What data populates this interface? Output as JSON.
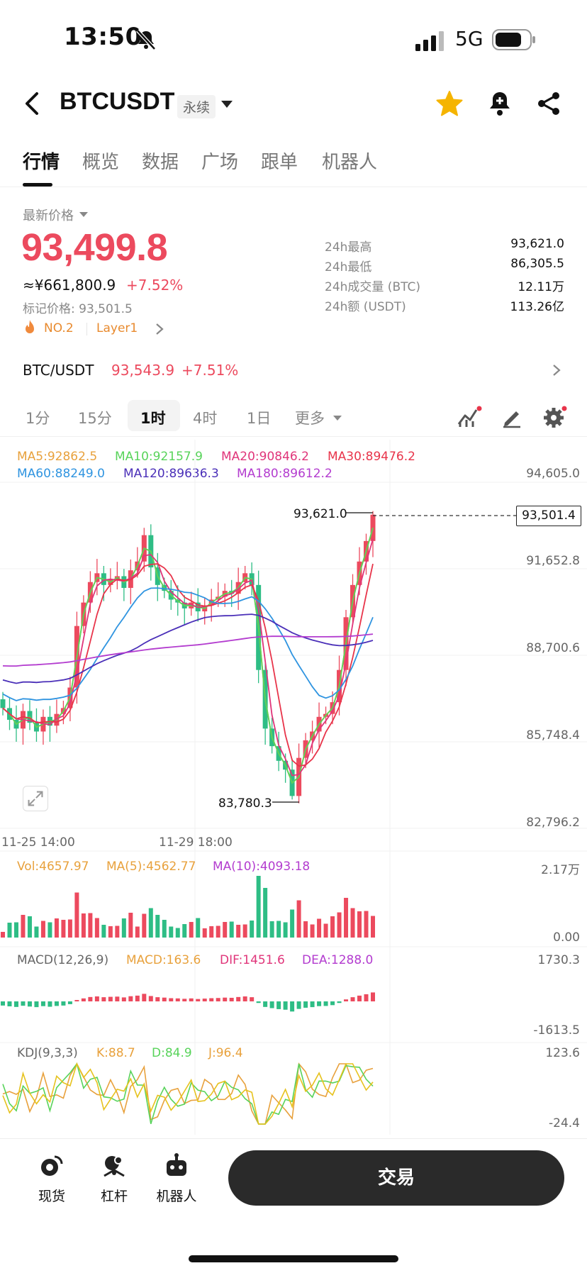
{
  "status_bar": {
    "time": "13:50",
    "network": "5G"
  },
  "header": {
    "symbol": "BTCUSDT",
    "contract_type": "永续"
  },
  "tabs": [
    "行情",
    "概览",
    "数据",
    "广场",
    "跟单",
    "机器人"
  ],
  "price": {
    "latest_label": "最新价格",
    "last": "93,499.8",
    "cny": "≈¥661,800.9",
    "change_pct": "+7.52%",
    "mark": "标记价格: 93,501.5",
    "rank": "NO.2",
    "sector": "Layer1"
  },
  "stats": [
    {
      "label": "24h最高",
      "value": "93,621.0"
    },
    {
      "label": "24h最低",
      "value": "86,305.5"
    },
    {
      "label": "24h成交量 (BTC)",
      "value": "12.11万"
    },
    {
      "label": "24h额 (USDT)",
      "value": "113.26亿"
    }
  ],
  "pair": {
    "name": "BTC/USDT",
    "price": "93,543.9",
    "change": "+7.51%"
  },
  "timeframes": [
    "1分",
    "15分",
    "1时",
    "4时",
    "1日",
    "更多"
  ],
  "active_timeframe": "1时",
  "ma_legend": {
    "ma5": "MA5:92862.5",
    "ma10": "MA10:92157.9",
    "ma20": "MA20:90846.2",
    "ma30": "MA30:89476.2",
    "ma60": "MA60:88249.0",
    "ma120": "MA120:89636.3",
    "ma180": "MA180:89612.2"
  },
  "price_axis": [
    "94,605.0",
    "91,652.8",
    "88,700.6",
    "85,748.4",
    "82,796.2"
  ],
  "price_tag": "93,501.4",
  "high_marker": "93,621.0",
  "low_marker": "83,780.3",
  "time_axis": [
    "11-25 14:00",
    "11-29 18:00"
  ],
  "volume": {
    "vol": "Vol:4657.97",
    "ma5": "MA(5):4562.77",
    "ma10": "MA(10):4093.18",
    "axis_top": "2.17万",
    "axis_bottom": "0.00"
  },
  "macd": {
    "label": "MACD(12,26,9)",
    "macd": "MACD:163.6",
    "dif": "DIF:1451.6",
    "dea": "DEA:1288.0",
    "axis_top": "1730.3",
    "axis_bottom": "-1613.5"
  },
  "kdj": {
    "label": "KDJ(9,3,3)",
    "k": "K:88.7",
    "d": "D:84.9",
    "j": "J:96.4",
    "axis_top": "123.6",
    "axis_bottom": "-24.4"
  },
  "bottom_nav": [
    "现货",
    "杠杆",
    "机器人"
  ],
  "trade_button": "交易",
  "colors": {
    "up": "#ec4a5e",
    "down": "#2ebd85",
    "accent_orange": "#e88a2e",
    "ma5": "#e8a13c",
    "ma10": "#58d35a",
    "ma20": "#e0357a",
    "ma30": "#e8344a",
    "ma60": "#2f94e0",
    "ma120": "#4a2fb8",
    "ma180": "#b33ccf"
  },
  "chart_data": {
    "type": "candlestick",
    "interval": "1h",
    "ylim": [
      82796.2,
      94605.0
    ],
    "high": 93621.0,
    "low": 83780.3,
    "last": 93501.4,
    "close_series": [
      86900,
      86500,
      86200,
      86800,
      86400,
      86100,
      86600,
      86300,
      86700,
      86900,
      87600,
      89700,
      90500,
      91200,
      91500,
      91100,
      91300,
      91400,
      91000,
      91600,
      91900,
      92800,
      91700,
      91100,
      90900,
      90600,
      90500,
      90300,
      90500,
      90200,
      90400,
      90600,
      90700,
      90900,
      90800,
      91200,
      91500,
      91100,
      88200,
      86200,
      85600,
      85100,
      84800,
      83900,
      85200,
      85800,
      86100,
      86600,
      86700,
      87100,
      88200,
      90000,
      91100,
      91900,
      92600,
      93500
    ]
  }
}
